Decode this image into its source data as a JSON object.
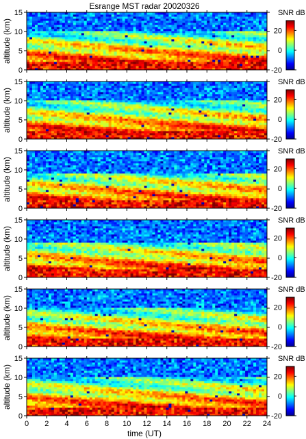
{
  "chart_data": {
    "type": "heatmap",
    "title": "Esrange MST radar 20020326",
    "xlabel": "time (UT)",
    "ylabel": "altitude (km)",
    "xlim": [
      0,
      24
    ],
    "ylim": [
      0,
      15
    ],
    "x_ticks": [
      "0",
      "2",
      "4",
      "6",
      "8",
      "10",
      "12",
      "14",
      "16",
      "18",
      "20",
      "22",
      "24"
    ],
    "y_ticks": [
      "0",
      "5",
      "10",
      "15"
    ],
    "colorbar": {
      "label": "SNR dB",
      "range": [
        -20,
        30
      ],
      "ticks": [
        "20",
        "0",
        "-20"
      ],
      "colormap": "jet"
    },
    "panels": [
      {
        "index": 1,
        "description_snr": "high near ground (~2 km), decreasing aloft",
        "noise_floor_km": 10
      },
      {
        "index": 2,
        "noise_floor_km": 10
      },
      {
        "index": 3,
        "noise_floor_km": 9
      },
      {
        "index": 4,
        "noise_floor_km": 9
      },
      {
        "index": 5,
        "noise_floor_km": 10
      },
      {
        "index": 6,
        "noise_floor_km": 10
      }
    ]
  }
}
